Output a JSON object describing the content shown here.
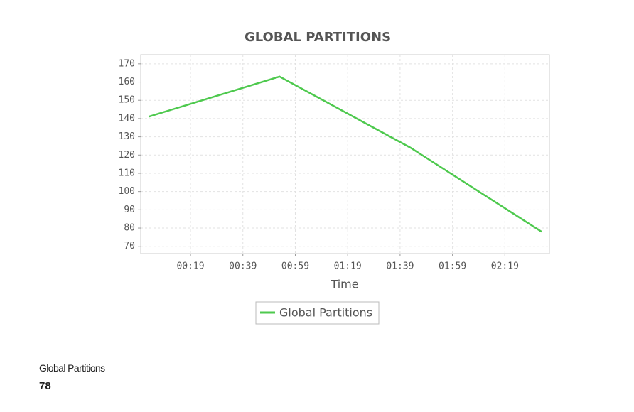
{
  "chart_data": {
    "type": "line",
    "title": "GLOBAL PARTITIONS",
    "x_label": "Time",
    "x": [
      3,
      53,
      103,
      153
    ],
    "series": [
      {
        "name": "Global Partitions",
        "color": "#4ec94e",
        "values": [
          141,
          163,
          124,
          78
        ]
      }
    ],
    "xlim": [
      0,
      156
    ],
    "xticks": [
      {
        "value": 19,
        "label": "00:19"
      },
      {
        "value": 39,
        "label": "00:39"
      },
      {
        "value": 59,
        "label": "00:59"
      },
      {
        "value": 79,
        "label": "01:19"
      },
      {
        "value": 99,
        "label": "01:39"
      },
      {
        "value": 119,
        "label": "01:59"
      },
      {
        "value": 139,
        "label": "02:19"
      }
    ],
    "ylim": [
      66,
      175
    ],
    "yticks": [
      70,
      80,
      90,
      100,
      110,
      120,
      130,
      140,
      150,
      160,
      170
    ],
    "grid": true,
    "legend": "bottom"
  },
  "summary": {
    "label": "Global Partitions",
    "value": 78
  }
}
